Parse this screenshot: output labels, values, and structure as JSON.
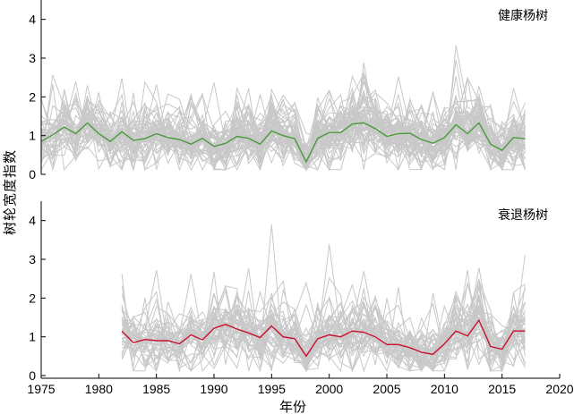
{
  "chart_data": {
    "type": "line",
    "xlabel": "年份",
    "ylabel": "树轮宽度指数",
    "x_ticks": [
      1975,
      1980,
      1985,
      1990,
      1995,
      2000,
      2005,
      2010,
      2015,
      2020
    ],
    "xlim": [
      1975,
      2020
    ],
    "panels": [
      {
        "label": "健康杨树",
        "ylim": [
          0,
          4.5
        ],
        "y_ticks": [
          0,
          1,
          2,
          3,
          4
        ],
        "mean_color": "#4a9a3c",
        "band_color": "#c8c8c8",
        "band_count": 60,
        "mean_series": {
          "x": [
            1975,
            1976,
            1977,
            1978,
            1979,
            1980,
            1981,
            1982,
            1983,
            1984,
            1985,
            1986,
            1987,
            1988,
            1989,
            1990,
            1991,
            1992,
            1993,
            1994,
            1995,
            1996,
            1997,
            1998,
            1999,
            2000,
            2001,
            2002,
            2003,
            2004,
            2005,
            2006,
            2007,
            2008,
            2009,
            2010,
            2011,
            2012,
            2013,
            2014,
            2015,
            2016,
            2017
          ],
          "y": [
            0.85,
            1.02,
            1.22,
            1.05,
            1.33,
            1.05,
            0.85,
            1.1,
            0.88,
            0.92,
            1.05,
            0.95,
            0.9,
            0.78,
            0.93,
            0.72,
            0.8,
            0.98,
            0.93,
            0.78,
            1.12,
            1.0,
            0.92,
            0.32,
            0.93,
            1.08,
            1.08,
            1.3,
            1.33,
            1.18,
            0.98,
            1.05,
            1.06,
            0.9,
            0.8,
            0.95,
            1.28,
            1.05,
            1.33,
            0.78,
            0.62,
            0.95,
            0.92
          ]
        }
      },
      {
        "label": "衰退杨树",
        "ylim": [
          0,
          4.5
        ],
        "y_ticks": [
          0,
          1,
          2,
          3,
          4
        ],
        "mean_color": "#c8102e",
        "band_color": "#c8c8c8",
        "band_count": 45,
        "mean_series": {
          "x": [
            1982,
            1983,
            1984,
            1985,
            1986,
            1987,
            1988,
            1989,
            1990,
            1991,
            1992,
            1993,
            1994,
            1995,
            1996,
            1997,
            1998,
            1999,
            2000,
            2001,
            2002,
            2003,
            2004,
            2005,
            2006,
            2007,
            2008,
            2009,
            2010,
            2011,
            2012,
            2013,
            2014,
            2015,
            2016,
            2017
          ],
          "y": [
            1.15,
            0.85,
            0.93,
            0.9,
            0.9,
            0.82,
            1.05,
            0.92,
            1.22,
            1.32,
            1.2,
            1.1,
            0.98,
            1.28,
            1.0,
            0.95,
            0.5,
            0.95,
            1.05,
            1.0,
            1.15,
            1.12,
            1.0,
            0.8,
            0.8,
            0.72,
            0.6,
            0.55,
            0.82,
            1.15,
            1.02,
            1.43,
            0.75,
            0.68,
            1.15,
            1.15
          ]
        }
      }
    ]
  }
}
